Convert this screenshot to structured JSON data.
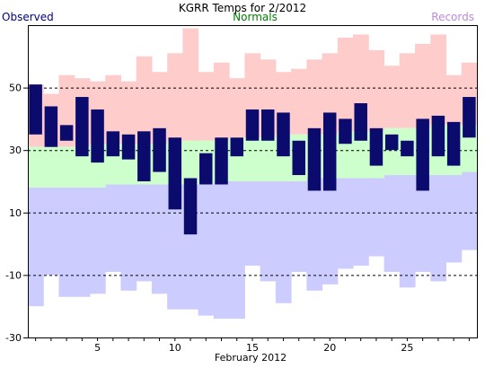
{
  "colors": {
    "observed": "#0b0b6e",
    "normals_band": "#ccffcc",
    "records_high": "#ffcccc",
    "records_low": "#ccccff",
    "title": "#000000",
    "observed_label": "#000080",
    "normals_label": "#008000",
    "records_label": "#bb88dd"
  },
  "chart_data": {
    "type": "bar",
    "title": "KGRR Temps for 2/2012",
    "xlabel": "February 2012",
    "ylabel": "",
    "legend": [
      "Observed",
      "Normals",
      "Records"
    ],
    "legend_placement": "top",
    "ylim": [
      -30,
      70
    ],
    "yticks": [
      -30,
      -10,
      10,
      30,
      50
    ],
    "xticks": [
      5,
      10,
      15,
      20,
      25
    ],
    "days": [
      1,
      2,
      3,
      4,
      5,
      6,
      7,
      8,
      9,
      10,
      11,
      12,
      13,
      14,
      15,
      16,
      17,
      18,
      19,
      20,
      21,
      22,
      23,
      24,
      25,
      26,
      27,
      28,
      29
    ],
    "grid": "dashed horizontal at 50, 30, 10, -10",
    "observed": [
      [
        35,
        51
      ],
      [
        31,
        44
      ],
      [
        33,
        38
      ],
      [
        28,
        47
      ],
      [
        26,
        43
      ],
      [
        28,
        36
      ],
      [
        27,
        35
      ],
      [
        20,
        36
      ],
      [
        23,
        37
      ],
      [
        11,
        34
      ],
      [
        3,
        21
      ],
      [
        19,
        29
      ],
      [
        19,
        34
      ],
      [
        28,
        34
      ],
      [
        33,
        43
      ],
      [
        33,
        43
      ],
      [
        28,
        42
      ],
      [
        22,
        33
      ],
      [
        17,
        37
      ],
      [
        17,
        42
      ],
      [
        32,
        40
      ],
      [
        33,
        45
      ],
      [
        25,
        37
      ],
      [
        30,
        35
      ],
      [
        28,
        33
      ],
      [
        17,
        40
      ],
      [
        28,
        41
      ],
      [
        25,
        39
      ],
      [
        34,
        47
      ]
    ],
    "normals": [
      [
        18,
        31
      ],
      [
        18,
        31
      ],
      [
        18,
        31
      ],
      [
        18,
        31
      ],
      [
        18,
        32
      ],
      [
        19,
        32
      ],
      [
        19,
        32
      ],
      [
        19,
        32
      ],
      [
        19,
        32
      ],
      [
        19,
        33
      ],
      [
        19,
        33
      ],
      [
        19,
        33
      ],
      [
        20,
        33
      ],
      [
        20,
        34
      ],
      [
        20,
        34
      ],
      [
        20,
        34
      ],
      [
        20,
        35
      ],
      [
        20,
        35
      ],
      [
        21,
        35
      ],
      [
        21,
        35
      ],
      [
        21,
        36
      ],
      [
        21,
        36
      ],
      [
        21,
        36
      ],
      [
        22,
        37
      ],
      [
        22,
        37
      ],
      [
        22,
        37
      ],
      [
        22,
        38
      ],
      [
        22,
        38
      ],
      [
        23,
        38
      ]
    ],
    "records": [
      [
        -20,
        51
      ],
      [
        -10,
        48
      ],
      [
        -17,
        54
      ],
      [
        -17,
        53
      ],
      [
        -16,
        52
      ],
      [
        -9,
        54
      ],
      [
        -15,
        52
      ],
      [
        -12,
        60
      ],
      [
        -16,
        55
      ],
      [
        -21,
        61
      ],
      [
        -21,
        69
      ],
      [
        -23,
        55
      ],
      [
        -24,
        58
      ],
      [
        -24,
        53
      ],
      [
        -7,
        61
      ],
      [
        -12,
        59
      ],
      [
        -19,
        55
      ],
      [
        -9,
        56
      ],
      [
        -15,
        59
      ],
      [
        -13,
        61
      ],
      [
        -8,
        66
      ],
      [
        -7,
        67
      ],
      [
        -4,
        62
      ],
      [
        -9,
        57
      ],
      [
        -14,
        61
      ],
      [
        -9,
        64
      ],
      [
        -12,
        67
      ],
      [
        -6,
        54
      ],
      [
        -2,
        58
      ]
    ]
  }
}
